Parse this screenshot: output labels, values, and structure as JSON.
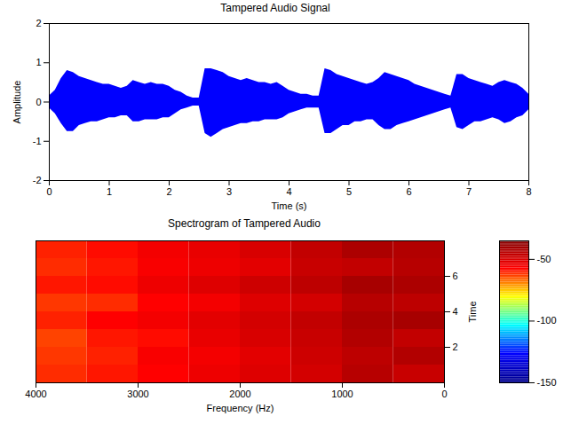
{
  "chart_data": [
    {
      "type": "area",
      "title": "Tampered Audio Signal",
      "xlabel": "Time (s)",
      "ylabel": "Amplitude",
      "color": "#0000ff",
      "xlim": [
        0,
        8
      ],
      "xticks": [
        0,
        1,
        2,
        3,
        4,
        5,
        6,
        7,
        8
      ],
      "ylim": [
        -2,
        2
      ],
      "yticks": [
        -2,
        -1,
        0,
        1,
        2
      ],
      "x": [
        0,
        0.1,
        0.2,
        0.3,
        0.4,
        0.5,
        0.6,
        0.7,
        0.8,
        0.9,
        1.0,
        1.1,
        1.2,
        1.3,
        1.4,
        1.5,
        1.6,
        1.7,
        1.8,
        1.9,
        2.0,
        2.1,
        2.2,
        2.3,
        2.4,
        2.5,
        2.6,
        2.7,
        2.8,
        2.9,
        3.0,
        3.1,
        3.2,
        3.3,
        3.4,
        3.5,
        3.6,
        3.7,
        3.8,
        3.9,
        4.0,
        4.1,
        4.2,
        4.3,
        4.4,
        4.5,
        4.6,
        4.7,
        4.8,
        4.9,
        5.0,
        5.1,
        5.2,
        5.3,
        5.4,
        5.5,
        5.6,
        5.7,
        5.8,
        5.9,
        6.0,
        6.1,
        6.2,
        6.3,
        6.4,
        6.5,
        6.6,
        6.7,
        6.8,
        6.9,
        7.0,
        7.1,
        7.2,
        7.3,
        7.4,
        7.5,
        7.6,
        7.7,
        7.8,
        7.9,
        8.0
      ],
      "upper": [
        0.15,
        0.3,
        0.6,
        0.8,
        0.75,
        0.65,
        0.6,
        0.55,
        0.5,
        0.45,
        0.45,
        0.4,
        0.35,
        0.4,
        0.55,
        0.5,
        0.45,
        0.5,
        0.45,
        0.45,
        0.4,
        0.3,
        0.25,
        0.15,
        0.1,
        0.1,
        0.85,
        0.85,
        0.8,
        0.75,
        0.65,
        0.6,
        0.55,
        0.6,
        0.55,
        0.5,
        0.5,
        0.45,
        0.5,
        0.4,
        0.3,
        0.25,
        0.2,
        0.2,
        0.15,
        0.15,
        0.85,
        0.8,
        0.7,
        0.65,
        0.6,
        0.55,
        0.5,
        0.45,
        0.5,
        0.6,
        0.75,
        0.7,
        0.65,
        0.6,
        0.55,
        0.45,
        0.4,
        0.35,
        0.3,
        0.25,
        0.2,
        0.15,
        0.7,
        0.7,
        0.6,
        0.55,
        0.5,
        0.45,
        0.4,
        0.5,
        0.55,
        0.5,
        0.45,
        0.35,
        0.2
      ],
      "lower": [
        -0.15,
        -0.3,
        -0.55,
        -0.75,
        -0.75,
        -0.6,
        -0.55,
        -0.5,
        -0.5,
        -0.45,
        -0.4,
        -0.4,
        -0.35,
        -0.35,
        -0.5,
        -0.5,
        -0.45,
        -0.45,
        -0.45,
        -0.4,
        -0.4,
        -0.3,
        -0.2,
        -0.15,
        -0.1,
        -0.1,
        -0.8,
        -0.9,
        -0.8,
        -0.7,
        -0.65,
        -0.6,
        -0.55,
        -0.55,
        -0.5,
        -0.5,
        -0.45,
        -0.45,
        -0.45,
        -0.4,
        -0.3,
        -0.25,
        -0.2,
        -0.15,
        -0.15,
        -0.15,
        -0.8,
        -0.8,
        -0.7,
        -0.6,
        -0.6,
        -0.5,
        -0.5,
        -0.45,
        -0.45,
        -0.6,
        -0.7,
        -0.7,
        -0.6,
        -0.55,
        -0.5,
        -0.45,
        -0.4,
        -0.35,
        -0.3,
        -0.25,
        -0.2,
        -0.15,
        -0.65,
        -0.7,
        -0.6,
        -0.5,
        -0.5,
        -0.45,
        -0.4,
        -0.45,
        -0.55,
        -0.5,
        -0.4,
        -0.35,
        -0.2
      ]
    },
    {
      "type": "heatmap",
      "title": "Spectrogram of Tampered Audio",
      "xlabel": "Frequency (Hz)",
      "ylabel": "Time",
      "xlim": [
        4000,
        0
      ],
      "xticks": [
        4000,
        3000,
        2000,
        1000,
        0
      ],
      "ylim": [
        0,
        8
      ],
      "yticks": [
        2,
        4,
        6
      ],
      "frequency_bins": [
        0,
        500,
        1000,
        1500,
        2000,
        2500,
        3000,
        3500,
        4000
      ],
      "time_bins": [
        0,
        1,
        2,
        3,
        4,
        5,
        6,
        7,
        8
      ],
      "cells": [
        [
          -48,
          -45,
          -50,
          -52,
          -55,
          -58,
          -60,
          -62
        ],
        [
          -44,
          -46,
          -49,
          -53,
          -56,
          -57,
          -61,
          -63
        ],
        [
          -47,
          -44,
          -48,
          -51,
          -54,
          -59,
          -60,
          -64
        ],
        [
          -42,
          -43,
          -47,
          -50,
          -53,
          -56,
          -58,
          -61
        ],
        [
          -46,
          -45,
          -50,
          -52,
          -56,
          -58,
          -62,
          -63
        ],
        [
          -43,
          -42,
          -46,
          -49,
          -52,
          -55,
          -59,
          -60
        ],
        [
          -45,
          -47,
          -48,
          -53,
          -55,
          -57,
          -60,
          -62
        ],
        [
          -44,
          -43,
          -47,
          -51,
          -54,
          -56,
          -59,
          -61
        ]
      ],
      "colorbar_range": [
        -150,
        -35
      ],
      "colorbar_ticks": [
        -150,
        -100,
        -50
      ]
    }
  ]
}
